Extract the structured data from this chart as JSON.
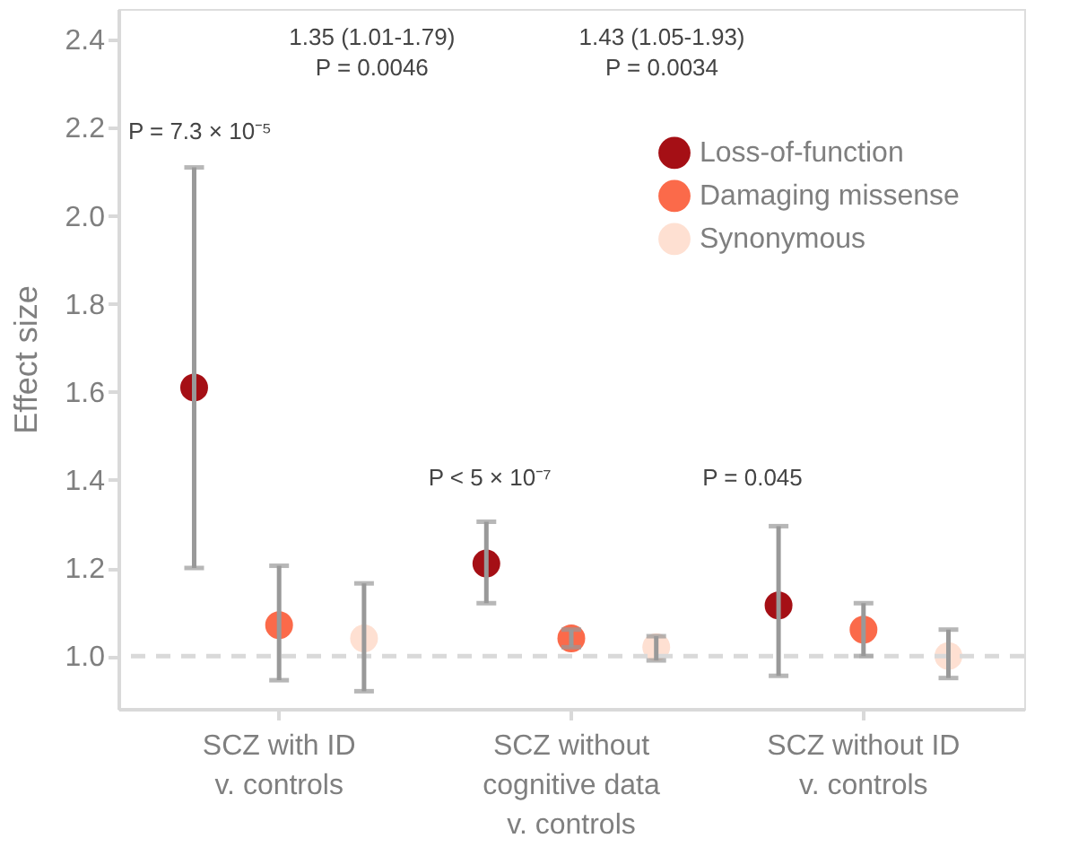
{
  "chart_data": {
    "type": "scatter",
    "categories": [
      "SCZ with ID\nv. controls",
      "SCZ without\ncognitive data\nv. controls",
      "SCZ without ID\nv. controls"
    ],
    "ylabel": "Effect size",
    "series": [
      {
        "name": "Loss-of-function",
        "color": "#a50f15",
        "values": [
          1.61,
          1.21,
          1.115
        ],
        "errors": [
          [
            1.2,
            2.11
          ],
          [
            1.12,
            1.305
          ],
          [
            0.955,
            1.295
          ]
        ]
      },
      {
        "name": "Damaging missense",
        "color": "#fb6a4a",
        "values": [
          1.07,
          1.04,
          1.06
        ],
        "errors": [
          [
            0.945,
            1.205
          ],
          [
            1.02,
            1.06
          ],
          [
            1.0,
            1.12
          ]
        ]
      },
      {
        "name": "Synonymous",
        "color": "#fee0d2",
        "values": [
          1.04,
          1.02,
          1.0
        ],
        "errors": [
          [
            0.92,
            1.165
          ],
          [
            0.99,
            1.045
          ],
          [
            0.95,
            1.06
          ]
        ]
      }
    ],
    "ylim": [
      0.88,
      2.47
    ],
    "yticks": [
      {
        "value": 1,
        "label": "1.0"
      },
      1.2,
      1.4,
      1.6,
      1.8,
      {
        "value": 2,
        "label": "2.0"
      },
      2.2,
      2.4
    ],
    "ref_lines": [
      {
        "axis": "y",
        "value": 1.0,
        "color": "#d9d9d9",
        "line_style": "dashed"
      }
    ],
    "annotations": [
      "1.35 (1.01-1.79)\nP = 0.0046",
      "1.43 (1.05-1.93)\nP = 0.0034",
      "P = 7.3 × 10⁻⁵",
      "P < 5 × 10⁻⁷",
      "P = 0.045"
    ],
    "legend": "top right",
    "grid": false
  }
}
